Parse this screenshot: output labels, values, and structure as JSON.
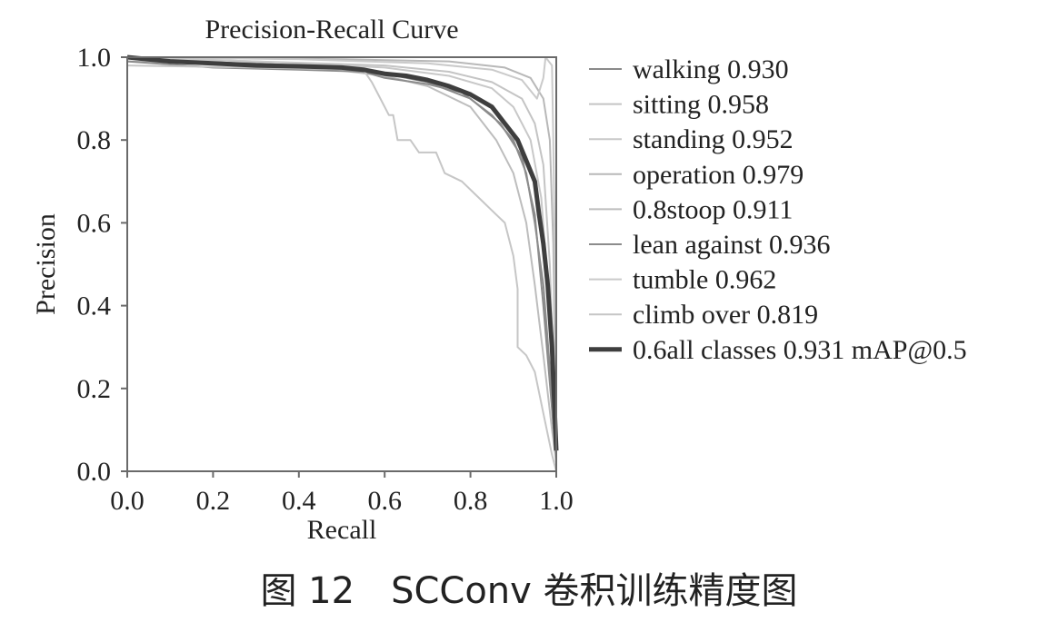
{
  "chart_data": {
    "type": "line",
    "title": "Precision-Recall Curve",
    "xlabel": "Recall",
    "ylabel": "Precision",
    "xlim": [
      0,
      1
    ],
    "ylim": [
      0,
      1
    ],
    "x_ticks": [
      "0.0",
      "0.2",
      "0.4",
      "0.6",
      "0.8",
      "1.0"
    ],
    "y_ticks": [
      "0.0",
      "0.2",
      "0.4",
      "0.6",
      "0.8",
      "1.0"
    ],
    "grid": false,
    "legend_position": "right",
    "series": [
      {
        "name": "walking 0.930",
        "color": "#8a8a8a",
        "width": 2,
        "points": [
          [
            0,
            1.0
          ],
          [
            0.1,
            0.99
          ],
          [
            0.3,
            0.985
          ],
          [
            0.5,
            0.975
          ],
          [
            0.6,
            0.96
          ],
          [
            0.7,
            0.94
          ],
          [
            0.8,
            0.9
          ],
          [
            0.87,
            0.84
          ],
          [
            0.92,
            0.76
          ],
          [
            0.95,
            0.62
          ],
          [
            0.97,
            0.4
          ],
          [
            0.99,
            0.15
          ],
          [
            1.0,
            0.02
          ]
        ]
      },
      {
        "name": "sitting 0.958",
        "color": "#c4c4c4",
        "width": 2,
        "points": [
          [
            0,
            1.0
          ],
          [
            0.3,
            0.99
          ],
          [
            0.6,
            0.98
          ],
          [
            0.75,
            0.965
          ],
          [
            0.85,
            0.94
          ],
          [
            0.92,
            0.9
          ],
          [
            0.95,
            0.84
          ],
          [
            0.97,
            0.74
          ],
          [
            0.985,
            0.5
          ],
          [
            0.995,
            0.2
          ],
          [
            1.0,
            0.03
          ]
        ]
      },
      {
        "name": "standing 0.952",
        "color": "#c8c8c8",
        "width": 2,
        "points": [
          [
            0,
            1.0
          ],
          [
            0.3,
            0.99
          ],
          [
            0.6,
            0.975
          ],
          [
            0.75,
            0.955
          ],
          [
            0.85,
            0.925
          ],
          [
            0.9,
            0.88
          ],
          [
            0.94,
            0.8
          ],
          [
            0.965,
            0.66
          ],
          [
            0.98,
            0.45
          ],
          [
            0.995,
            0.15
          ],
          [
            1.0,
            0.02
          ]
        ]
      },
      {
        "name": "operation 0.979",
        "color": "#b8b8b8",
        "width": 2,
        "points": [
          [
            0,
            1.0
          ],
          [
            0.5,
            0.995
          ],
          [
            0.75,
            0.99
          ],
          [
            0.88,
            0.975
          ],
          [
            0.94,
            0.95
          ],
          [
            0.97,
            0.9
          ],
          [
            0.985,
            0.8
          ],
          [
            0.993,
            0.55
          ],
          [
            1.0,
            0.06
          ]
        ]
      },
      {
        "name": "0.8stoop 0.911",
        "color": "#bdbdbd",
        "width": 2,
        "points": [
          [
            0,
            0.99
          ],
          [
            0.2,
            0.985
          ],
          [
            0.4,
            0.98
          ],
          [
            0.6,
            0.955
          ],
          [
            0.7,
            0.93
          ],
          [
            0.8,
            0.88
          ],
          [
            0.86,
            0.8
          ],
          [
            0.9,
            0.72
          ],
          [
            0.93,
            0.6
          ],
          [
            0.95,
            0.45
          ],
          [
            0.97,
            0.28
          ],
          [
            0.99,
            0.1
          ],
          [
            1.0,
            0.02
          ]
        ]
      },
      {
        "name": "lean against 0.936",
        "color": "#8c8c8c",
        "width": 2,
        "points": [
          [
            0,
            0.99
          ],
          [
            0.2,
            0.975
          ],
          [
            0.4,
            0.97
          ],
          [
            0.55,
            0.965
          ],
          [
            0.6,
            0.95
          ],
          [
            0.7,
            0.935
          ],
          [
            0.78,
            0.915
          ],
          [
            0.85,
            0.86
          ],
          [
            0.9,
            0.8
          ],
          [
            0.93,
            0.72
          ],
          [
            0.95,
            0.6
          ],
          [
            0.97,
            0.45
          ],
          [
            0.985,
            0.25
          ],
          [
            1.0,
            0.04
          ]
        ]
      },
      {
        "name": "tumble 0.962",
        "color": "#cacaca",
        "width": 2,
        "points": [
          [
            0,
            1.0
          ],
          [
            0.4,
            0.995
          ],
          [
            0.7,
            0.985
          ],
          [
            0.85,
            0.97
          ],
          [
            0.92,
            0.945
          ],
          [
            0.955,
            0.9
          ],
          [
            0.97,
            0.95
          ],
          [
            0.975,
            1.0
          ],
          [
            0.99,
            0.98
          ],
          [
            0.993,
            0.8
          ],
          [
            0.997,
            0.5
          ],
          [
            1.0,
            0.08
          ]
        ]
      },
      {
        "name": "climb over 0.819",
        "color": "#c6c6c6",
        "width": 2,
        "points": [
          [
            0,
            0.98
          ],
          [
            0.3,
            0.975
          ],
          [
            0.55,
            0.97
          ],
          [
            0.57,
            0.94
          ],
          [
            0.59,
            0.9
          ],
          [
            0.6,
            0.88
          ],
          [
            0.61,
            0.86
          ],
          [
            0.62,
            0.86
          ],
          [
            0.63,
            0.8
          ],
          [
            0.66,
            0.8
          ],
          [
            0.68,
            0.77
          ],
          [
            0.72,
            0.77
          ],
          [
            0.74,
            0.72
          ],
          [
            0.78,
            0.7
          ],
          [
            0.82,
            0.66
          ],
          [
            0.86,
            0.62
          ],
          [
            0.88,
            0.6
          ],
          [
            0.89,
            0.56
          ],
          [
            0.9,
            0.52
          ],
          [
            0.91,
            0.44
          ],
          [
            0.91,
            0.3
          ],
          [
            0.93,
            0.28
          ],
          [
            0.95,
            0.24
          ],
          [
            0.97,
            0.14
          ],
          [
            0.99,
            0.04
          ],
          [
            1.0,
            0.0
          ]
        ]
      },
      {
        "name": "0.6all classes 0.931 mAP@0.5",
        "color": "#3e3e3e",
        "width": 5,
        "points": [
          [
            0,
            1.0
          ],
          [
            0.1,
            0.99
          ],
          [
            0.2,
            0.985
          ],
          [
            0.3,
            0.98
          ],
          [
            0.4,
            0.978
          ],
          [
            0.5,
            0.975
          ],
          [
            0.55,
            0.97
          ],
          [
            0.6,
            0.96
          ],
          [
            0.65,
            0.955
          ],
          [
            0.7,
            0.945
          ],
          [
            0.75,
            0.93
          ],
          [
            0.8,
            0.91
          ],
          [
            0.85,
            0.88
          ],
          [
            0.88,
            0.84
          ],
          [
            0.91,
            0.8
          ],
          [
            0.93,
            0.75
          ],
          [
            0.95,
            0.7
          ],
          [
            0.96,
            0.62
          ],
          [
            0.97,
            0.55
          ],
          [
            0.98,
            0.45
          ],
          [
            0.99,
            0.3
          ],
          [
            0.995,
            0.18
          ],
          [
            1.0,
            0.05
          ]
        ]
      }
    ]
  },
  "caption": "图 12　SCConv 卷积训练精度图"
}
